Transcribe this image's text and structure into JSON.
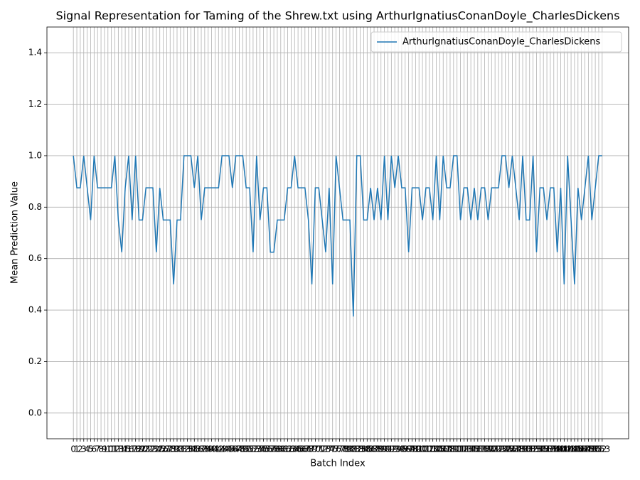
{
  "chart_data": {
    "type": "line",
    "title": "Signal Representation for Taming of the Shrew.txt using ArthurIgnatiusConanDoyle_CharlesDickens",
    "x_label": "Batch Index",
    "y_label": "Mean Prediction Value",
    "categories": [
      "0",
      "1",
      "2",
      "3",
      "4",
      "5",
      "6",
      "7",
      "8",
      "9",
      "10",
      "11",
      "12",
      "13",
      "14",
      "15",
      "16",
      "17",
      "18",
      "19",
      "20",
      "21",
      "22",
      "23",
      "24",
      "25",
      "26",
      "27",
      "28",
      "29",
      "30",
      "31",
      "32",
      "33",
      "34",
      "35",
      "36",
      "37",
      "38",
      "39",
      "40",
      "41",
      "42",
      "43",
      "44",
      "45",
      "46",
      "47",
      "48",
      "49",
      "50",
      "51",
      "52",
      "53",
      "54",
      "55",
      "56",
      "57",
      "58",
      "59",
      "60",
      "61",
      "62",
      "63",
      "64",
      "65",
      "66",
      "67",
      "68",
      "69",
      "70",
      "71",
      "72",
      "73",
      "74",
      "75",
      "76",
      "77",
      "78",
      "79",
      "80",
      "81",
      "82",
      "83",
      "84",
      "85",
      "86",
      "87",
      "88",
      "89",
      "90",
      "91",
      "92",
      "93",
      "94",
      "95",
      "96",
      "97",
      "98",
      "99",
      "100",
      "101",
      "102",
      "103",
      "104",
      "105",
      "106",
      "107",
      "108",
      "109",
      "110",
      "111",
      "112",
      "113",
      "114",
      "115",
      "116",
      "117",
      "118",
      "119",
      "120",
      "121",
      "122",
      "123",
      "124",
      "125",
      "126",
      "127",
      "128",
      "129",
      "130",
      "131",
      "132",
      "133",
      "134",
      "135",
      "136",
      "137",
      "138",
      "139",
      "140",
      "141",
      "142",
      "143",
      "144",
      "145",
      "146",
      "147",
      "148",
      "149",
      "150",
      "151",
      "152",
      "153"
    ],
    "series": [
      {
        "name": "ArthurIgnatiusConanDoyle_CharlesDickens",
        "color": "#1f77b4",
        "values": [
          1.0,
          0.875,
          0.875,
          1.0,
          0.875,
          0.75,
          1.0,
          0.875,
          0.875,
          0.875,
          0.875,
          0.875,
          1.0,
          0.75,
          0.625,
          0.875,
          1.0,
          0.75,
          1.0,
          0.75,
          0.75,
          0.875,
          0.875,
          0.875,
          0.625,
          0.875,
          0.75,
          0.75,
          0.75,
          0.5,
          0.75,
          0.75,
          1.0,
          1.0,
          1.0,
          0.875,
          1.0,
          0.75,
          0.875,
          0.875,
          0.875,
          0.875,
          0.875,
          1.0,
          1.0,
          1.0,
          0.875,
          1.0,
          1.0,
          1.0,
          0.875,
          0.875,
          0.625,
          1.0,
          0.75,
          0.875,
          0.875,
          0.625,
          0.625,
          0.75,
          0.75,
          0.75,
          0.875,
          0.875,
          1.0,
          0.875,
          0.875,
          0.875,
          0.75,
          0.5,
          0.875,
          0.875,
          0.75,
          0.625,
          0.875,
          0.5,
          1.0,
          0.875,
          0.75,
          0.75,
          0.75,
          0.375,
          1.0,
          1.0,
          0.75,
          0.75,
          0.875,
          0.75,
          0.875,
          0.75,
          1.0,
          0.75,
          1.0,
          0.875,
          1.0,
          0.875,
          0.875,
          0.625,
          0.875,
          0.875,
          0.875,
          0.75,
          0.875,
          0.875,
          0.75,
          1.0,
          0.75,
          1.0,
          0.875,
          0.875,
          1.0,
          1.0,
          0.75,
          0.875,
          0.875,
          0.75,
          0.875,
          0.75,
          0.875,
          0.875,
          0.75,
          0.875,
          0.875,
          0.875,
          1.0,
          1.0,
          0.875,
          1.0,
          0.875,
          0.75,
          1.0,
          0.75,
          0.75,
          1.0,
          0.625,
          0.875,
          0.875,
          0.75,
          0.875,
          0.875,
          0.625,
          0.875,
          0.5,
          1.0,
          0.75,
          0.5,
          0.875,
          0.75,
          0.875,
          1.0,
          0.75,
          0.875,
          1.0,
          1.0
        ]
      }
    ],
    "ylim": [
      -0.1,
      1.5
    ],
    "yticks": [
      {
        "value": 0,
        "label": "0.0"
      },
      0.2,
      0.4,
      0.6,
      0.8,
      {
        "value": 1,
        "label": "1.0"
      },
      1.2,
      1.4
    ],
    "grid": true,
    "legend": "upper right"
  }
}
